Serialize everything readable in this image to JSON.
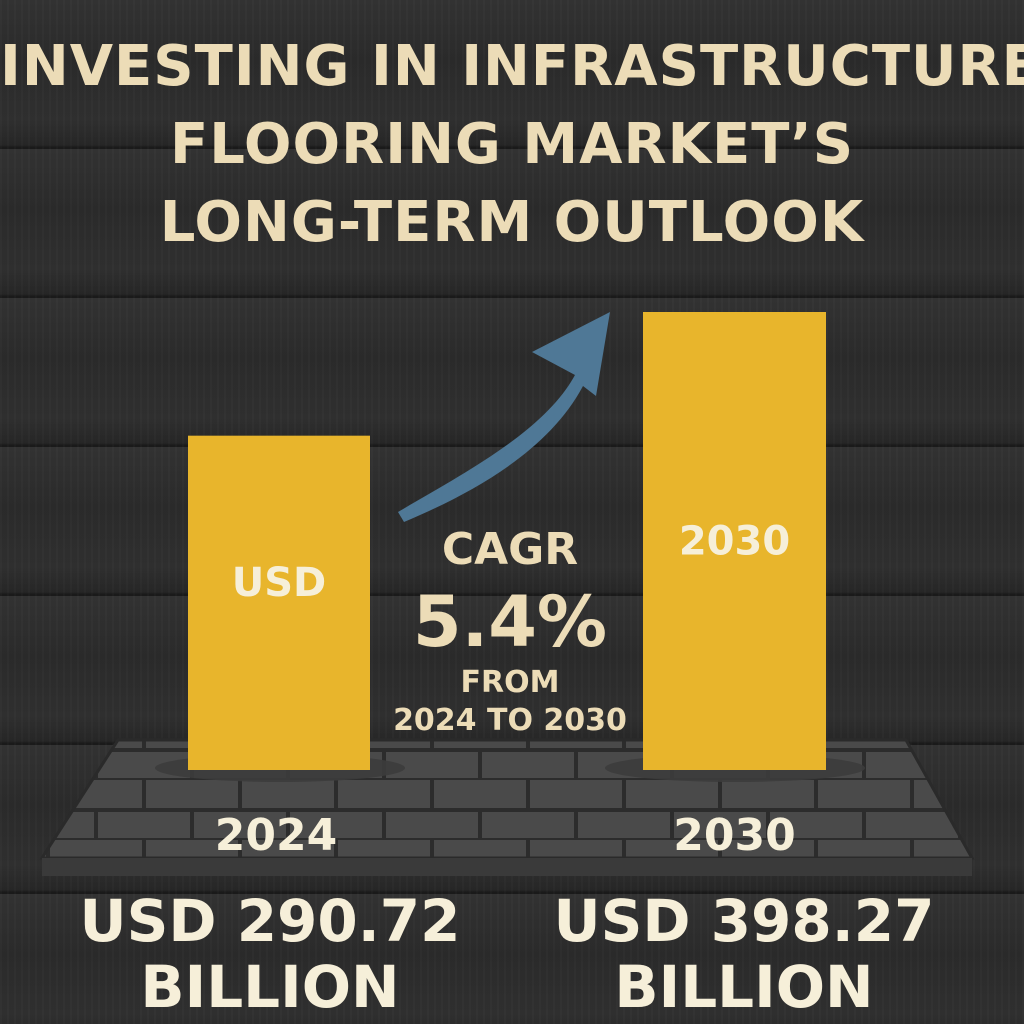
{
  "title": {
    "line1": "INVESTING IN INFRASTRUCTURE:",
    "line2": "FLOORING MARKET’S",
    "line3": "LONG-TERM OUTLOOK"
  },
  "cagr": {
    "label": "CAGR",
    "value": "5.4%",
    "from_label": "FROM",
    "range_label": "2024 TO 2030"
  },
  "colors": {
    "bar": "#e8b52c",
    "arrow": "#4f7896",
    "title": "#ecdcb7",
    "text": "#f6efd9",
    "background": "#2f2f2f"
  },
  "chart_data": {
    "type": "bar",
    "categories": [
      "2024",
      "2030"
    ],
    "values": [
      290.72,
      398.27
    ],
    "bar_labels": [
      "USD",
      "2030"
    ],
    "value_labels": [
      {
        "line1": "USD 290.72",
        "line2": "BILLION"
      },
      {
        "line1": "USD 398.27",
        "line2": "BILLION"
      }
    ],
    "unit": "USD billion",
    "grid": false
  }
}
